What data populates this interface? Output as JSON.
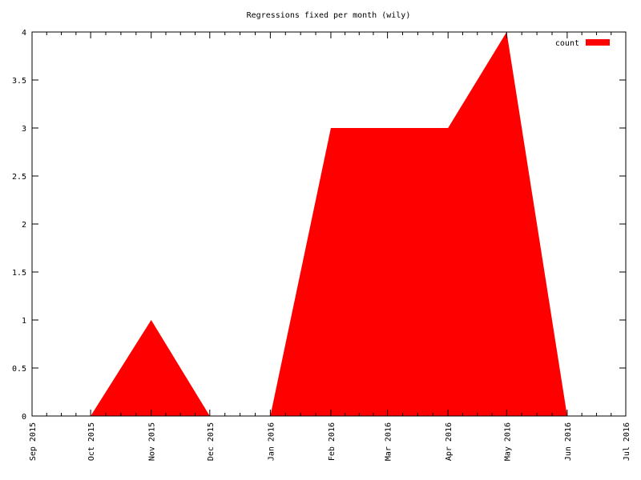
{
  "chart_data": {
    "type": "area",
    "title": "Regressions fixed per month (wily)",
    "x": [
      "Oct 2015",
      "Nov 2015",
      "Dec 2015",
      "Jan 2016",
      "Feb 2016",
      "Mar 2016",
      "Apr 2016",
      "May 2016",
      "Jun 2016"
    ],
    "series": [
      {
        "name": "count",
        "color": "#ff0000",
        "values": [
          0,
          1,
          0,
          0,
          3,
          3,
          3,
          4,
          0
        ]
      }
    ],
    "xlim": [
      "Sep 2015",
      "Jul 2016"
    ],
    "xticks": [
      "Sep 2015",
      "Oct 2015",
      "Nov 2015",
      "Dec 2015",
      "Jan 2016",
      "Feb 2016",
      "Mar 2016",
      "Apr 2016",
      "May 2016",
      "Jun 2016",
      "Jul 2016"
    ],
    "ylim": [
      0,
      4
    ],
    "yticks": [
      0,
      0.5,
      1,
      1.5,
      2,
      2.5,
      3,
      3.5,
      4
    ],
    "legend": "top-right"
  }
}
